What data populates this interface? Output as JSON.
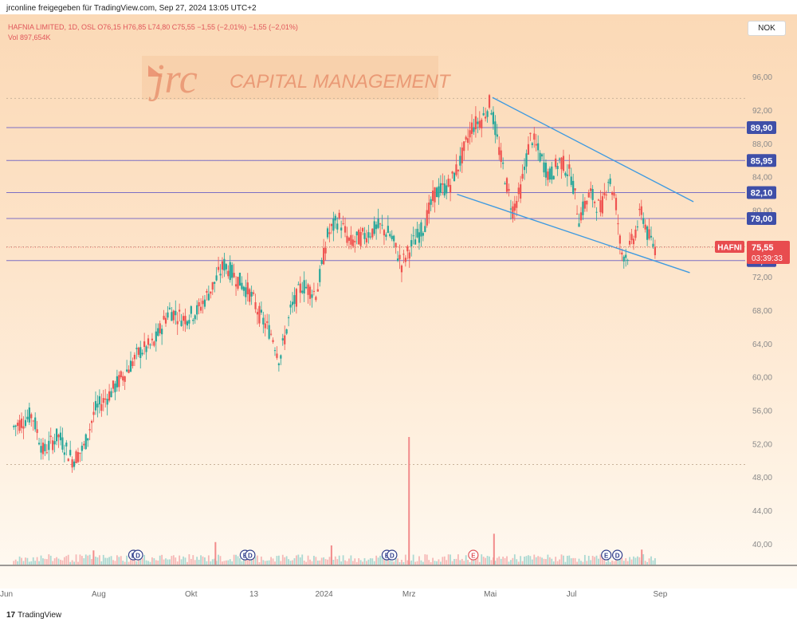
{
  "header": {
    "published_by": "jrconline freigegeben für TradingView.com, Sep 27, 2024 13:05 UTC+2",
    "symbol_line": "HAFNIA LIMITED, 1D, OSL  O76,15  H76,85  L74,80  C75,55  −1,55 (−2,01%)  −1,55 (−2,01%)",
    "volume_line": "Vol  897,654K",
    "currency_button": "NOK"
  },
  "watermark": {
    "logo": "jrc",
    "text": "CAPITAL MANAGEMENT"
  },
  "footer": {
    "brand_icon": "17",
    "brand_text": "TradingView"
  },
  "colors": {
    "up": "#26a69a",
    "down": "#ef5350",
    "level_line": "#7b6fc4",
    "channel": "#3f9ae0",
    "label_bg": "#3f4fa8",
    "price_tag": "#e84c4f"
  },
  "chart_data": {
    "type": "candlestick",
    "symbol": "HAFNI",
    "ylim": [
      37.5,
      98.5
    ],
    "y_ticks": [
      "96,00",
      "92,00",
      "88,00",
      "84,00",
      "80,00",
      "72,00",
      "68,00",
      "64,00",
      "60,00",
      "56,00",
      "52,00",
      "48,00",
      "44,00",
      "40,00"
    ],
    "x_ticks": [
      "Jun",
      "Aug",
      "Okt",
      "13",
      "2024",
      "Mrz",
      "Mai",
      "Jul",
      "Sep"
    ],
    "horizontal_levels": [
      {
        "label": "89,90",
        "value": 89.9
      },
      {
        "label": "85,95",
        "value": 85.95
      },
      {
        "label": "82,10",
        "value": 82.1
      },
      {
        "label": "79,00",
        "value": 79.0
      },
      {
        "label": "73,95",
        "value": 73.95
      }
    ],
    "dotted_levels": [
      93.4,
      75.6,
      49.5
    ],
    "current_price": {
      "symbol": "HAFNI",
      "value": 75.55,
      "label": "75,55",
      "countdown": "03:39:33"
    },
    "channel_upper": [
      [
        0.658,
        93.5
      ],
      [
        0.93,
        81.0
      ]
    ],
    "channel_lower": [
      [
        0.61,
        81.9
      ],
      [
        0.925,
        72.5
      ]
    ],
    "price_path": [
      [
        0.01,
        54
      ],
      [
        0.035,
        55.5
      ],
      [
        0.05,
        51
      ],
      [
        0.07,
        53
      ],
      [
        0.09,
        50
      ],
      [
        0.105,
        51.5
      ],
      [
        0.12,
        56
      ],
      [
        0.14,
        58
      ],
      [
        0.165,
        61
      ],
      [
        0.18,
        63
      ],
      [
        0.2,
        64
      ],
      [
        0.22,
        68
      ],
      [
        0.24,
        67
      ],
      [
        0.26,
        68
      ],
      [
        0.28,
        71
      ],
      [
        0.295,
        73.5
      ],
      [
        0.31,
        72
      ],
      [
        0.33,
        70
      ],
      [
        0.345,
        67
      ],
      [
        0.36,
        65
      ],
      [
        0.37,
        62
      ],
      [
        0.385,
        68
      ],
      [
        0.4,
        71
      ],
      [
        0.42,
        70
      ],
      [
        0.435,
        77
      ],
      [
        0.45,
        79
      ],
      [
        0.465,
        76
      ],
      [
        0.485,
        77
      ],
      [
        0.505,
        78
      ],
      [
        0.52,
        77
      ],
      [
        0.535,
        73.5
      ],
      [
        0.55,
        76
      ],
      [
        0.565,
        78
      ],
      [
        0.58,
        82
      ],
      [
        0.6,
        83
      ],
      [
        0.615,
        86
      ],
      [
        0.63,
        90
      ],
      [
        0.645,
        91
      ],
      [
        0.655,
        93
      ],
      [
        0.665,
        88
      ],
      [
        0.675,
        84
      ],
      [
        0.685,
        80
      ],
      [
        0.695,
        82
      ],
      [
        0.71,
        89
      ],
      [
        0.72,
        87
      ],
      [
        0.735,
        84
      ],
      [
        0.75,
        86
      ],
      [
        0.765,
        84
      ],
      [
        0.775,
        79
      ],
      [
        0.79,
        82
      ],
      [
        0.805,
        80
      ],
      [
        0.815,
        84
      ],
      [
        0.825,
        81
      ],
      [
        0.832,
        75
      ],
      [
        0.84,
        74.5
      ],
      [
        0.85,
        77
      ],
      [
        0.86,
        80
      ],
      [
        0.868,
        77
      ],
      [
        0.878,
        75.5
      ]
    ],
    "volume_spikes": [
      [
        0.545,
        52.8
      ],
      [
        0.66,
        41.2
      ],
      [
        0.283,
        40.2
      ],
      [
        0.44,
        39.8
      ],
      [
        0.86,
        39.3
      ],
      [
        0.118,
        39.2
      ]
    ],
    "earnings_markers": [
      [
        0.172,
        "E"
      ],
      [
        0.178,
        "D"
      ],
      [
        0.323,
        "E"
      ],
      [
        0.33,
        "D"
      ],
      [
        0.515,
        "E"
      ],
      [
        0.522,
        "D"
      ],
      [
        0.632,
        "E"
      ],
      [
        0.812,
        "E"
      ],
      [
        0.827,
        "D"
      ]
    ]
  }
}
